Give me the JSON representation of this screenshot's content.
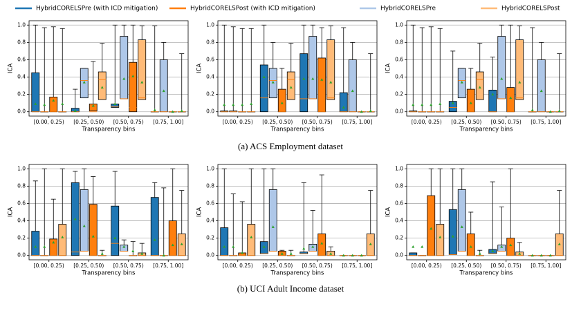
{
  "captions": [
    "(a) ACS Employment dataset",
    "(b) UCI Adult Income dataset"
  ],
  "chart_data": [
    {
      "type": "box",
      "ylabel": "ICA",
      "xlabel": "Transparency bins",
      "categories": [
        "[0.00, 0.25)",
        "[0.25, 0.50)",
        "[0.50, 0.75)",
        "[0.75, 1.00]"
      ],
      "ylim": [
        -0.05,
        1.05
      ],
      "yticks": [
        {
          "value": 0,
          "label": "0.0"
        },
        0.2,
        0.4,
        0.6,
        0.8,
        {
          "value": 1,
          "label": "1.0"
        }
      ],
      "grid": true,
      "series": [
        {
          "name": "HybridCORELSPre (with ICD mitigation)",
          "color": "#1f77b4",
          "q1": [
            0,
            0,
            0.05,
            0
          ],
          "q3": [
            0.45,
            0.04,
            0.09,
            0
          ],
          "median": [
            0,
            0,
            0.06,
            0
          ],
          "whishi": [
            1.0,
            0.26,
            1.0,
            0.99
          ],
          "mean": [
            0.09,
            0.01,
            0.09,
            0.02
          ]
        },
        {
          "name": "HybridCORELSPost (with ICD mitigation)",
          "color": "#ff7f0e",
          "q1": [
            0,
            0.01,
            0,
            0
          ],
          "q3": [
            0.17,
            0.09,
            0.57,
            0
          ],
          "median": [
            0,
            0,
            0.05,
            0
          ],
          "whishi": [
            0.98,
            0.58,
            1.0,
            0
          ],
          "mean": [
            0.13,
            0.07,
            0.41,
            0
          ]
        },
        {
          "name": "HybridCORELSPre",
          "color": "#aec7e8",
          "q1": [
            0,
            0.16,
            0.15,
            0
          ],
          "q3": [
            0,
            0.5,
            0.87,
            0.6
          ],
          "median": [
            0,
            0.36,
            0.15,
            0
          ],
          "whishi": [
            0.97,
            0.5,
            1.0,
            0.8
          ],
          "mean": [
            0.08,
            0.34,
            0.38,
            0.24
          ]
        },
        {
          "name": "HybridCORELSPost",
          "color": "#ffbb78",
          "q1": [
            0,
            0.14,
            0.14,
            0
          ],
          "q3": [
            0,
            0.46,
            0.83,
            0
          ],
          "median": [
            0,
            0.37,
            0.16,
            0
          ],
          "whishi": [
            0.96,
            0.79,
            0.99,
            0.67
          ],
          "mean": [
            0.09,
            0.28,
            0.34,
            0.01
          ]
        }
      ]
    },
    {
      "type": "box",
      "ylabel": "ICA",
      "xlabel": "Transparency bins",
      "categories": [
        "[0.00, 0.25)",
        "[0.25, 0.50)",
        "[0.50, 0.75)",
        "[0.75, 1.00]"
      ],
      "ylim": [
        -0.05,
        1.05
      ],
      "yticks": [
        {
          "value": 0,
          "label": "0.0"
        },
        0.2,
        0.4,
        0.6,
        0.8,
        {
          "value": 1,
          "label": "1.0"
        }
      ],
      "grid": true,
      "series": [
        {
          "name": "HybridCORELSPre (with ICD mitigation)",
          "color": "#1f77b4",
          "q1": [
            0,
            0,
            0,
            0
          ],
          "q3": [
            0.01,
            0.54,
            0.67,
            0.22
          ],
          "median": [
            0,
            0.16,
            0.15,
            0
          ],
          "whishi": [
            1.0,
            1.0,
            1.0,
            0.97
          ],
          "mean": [
            0.08,
            0.4,
            0.38,
            0.05
          ]
        },
        {
          "name": "HybridCORELSPost (with ICD mitigation)",
          "color": "#ff7f0e",
          "q1": [
            0,
            0,
            0,
            0
          ],
          "q3": [
            0,
            0.26,
            0.62,
            0
          ],
          "median": [
            0,
            0,
            0,
            0
          ],
          "whishi": [
            0.96,
            0.5,
            0.97,
            0
          ],
          "mean": [
            0.08,
            0.1,
            0.37,
            0
          ]
        },
        {
          "name": "HybridCORELSPre",
          "color": "#aec7e8",
          "q1": [
            0,
            0.16,
            0.15,
            0
          ],
          "q3": [
            0.01,
            0.5,
            0.87,
            0.6
          ],
          "median": [
            0,
            0.36,
            0.15,
            0
          ],
          "whishi": [
            0.98,
            0.8,
            1.0,
            0.8
          ],
          "mean": [
            0.08,
            0.34,
            0.38,
            0.24
          ]
        },
        {
          "name": "HybridCORELSPost",
          "color": "#ffbb78",
          "q1": [
            0,
            0.14,
            0.14,
            0
          ],
          "q3": [
            0,
            0.46,
            0.83,
            0
          ],
          "median": [
            0,
            0.37,
            0.16,
            0
          ],
          "whishi": [
            0.96,
            0.79,
            0.99,
            0.67
          ],
          "mean": [
            0.09,
            0.28,
            0.34,
            0.01
          ]
        }
      ]
    },
    {
      "type": "box",
      "ylabel": "ICA",
      "xlabel": "Transparency bins",
      "categories": [
        "[0.00, 0.25)",
        "[0.25, 0.50)",
        "[0.50, 0.75)",
        "[0.75, 1.00]"
      ],
      "ylim": [
        -0.05,
        1.05
      ],
      "yticks": [
        {
          "value": 0,
          "label": "0.0"
        },
        0.2,
        0.4,
        0.6,
        0.8,
        {
          "value": 1,
          "label": "1.0"
        }
      ],
      "grid": true,
      "series": [
        {
          "name": "HybridCORELSPre (with ICD mitigation)",
          "color": "#1f77b4",
          "q1": [
            0,
            0,
            0,
            0
          ],
          "q3": [
            0.01,
            0.12,
            0.25,
            0
          ],
          "median": [
            0,
            0.05,
            0,
            0
          ],
          "whishi": [
            1.0,
            0.7,
            0.63,
            0.97
          ],
          "mean": [
            0.08,
            0.1,
            0.2,
            0.02
          ]
        },
        {
          "name": "HybridCORELSPost (with ICD mitigation)",
          "color": "#ff7f0e",
          "q1": [
            0,
            0,
            0,
            0
          ],
          "q3": [
            0,
            0.26,
            0.28,
            0
          ],
          "median": [
            0,
            0,
            0,
            0
          ],
          "whishi": [
            0.98,
            0.5,
            1.0,
            0
          ],
          "mean": [
            0.08,
            0.1,
            0.16,
            0
          ]
        },
        {
          "name": "HybridCORELSPre",
          "color": "#aec7e8",
          "q1": [
            0,
            0.16,
            0.15,
            0
          ],
          "q3": [
            0,
            0.5,
            0.87,
            0.6
          ],
          "median": [
            0,
            0.36,
            0.15,
            0
          ],
          "whishi": [
            0.97,
            0.5,
            1.0,
            0.8
          ],
          "mean": [
            0.08,
            0.34,
            0.38,
            0.24
          ]
        },
        {
          "name": "HybridCORELSPost",
          "color": "#ffbb78",
          "q1": [
            0,
            0.14,
            0.14,
            0
          ],
          "q3": [
            0,
            0.46,
            0.83,
            0
          ],
          "median": [
            0,
            0.37,
            0.16,
            0
          ],
          "whishi": [
            0.96,
            0.79,
            0.99,
            0.67
          ],
          "mean": [
            0.09,
            0.28,
            0.34,
            0.01
          ]
        }
      ]
    },
    {
      "type": "box",
      "ylabel": "ICA",
      "xlabel": "Transparency bins",
      "categories": [
        "[0.00, 0.25)",
        "[0.25, 0.50)",
        "[0.50, 0.75)",
        "[0.75, 1.00]"
      ],
      "ylim": [
        -0.05,
        1.05
      ],
      "yticks": [
        {
          "value": 0,
          "label": "0.0"
        },
        0.2,
        0.4,
        0.6,
        0.8,
        {
          "value": 1,
          "label": "1.0"
        }
      ],
      "grid": true,
      "series": [
        {
          "name": "HybridCORELSPre (with ICD mitigation)",
          "color": "#1f77b4",
          "q1": [
            0,
            0,
            0,
            0
          ],
          "q3": [
            0.28,
            0.84,
            0.57,
            0.67
          ],
          "median": [
            0,
            0.04,
            0.14,
            0
          ],
          "whishi": [
            0.86,
            0.97,
            0.97,
            0.84
          ],
          "mean": [
            0.1,
            0.42,
            0.2,
            0.18
          ]
        },
        {
          "name": "HybridCORELSPost (with ICD mitigation)",
          "color": "#ff7f0e",
          "q1": [
            0,
            0,
            0,
            0
          ],
          "q3": [
            0.19,
            0.59,
            0,
            0.4
          ],
          "median": [
            0,
            0,
            0,
            0
          ],
          "whishi": [
            0.65,
            0.91,
            0.16,
            1.0
          ],
          "mean": [
            0.15,
            0.22,
            0.05,
            0.12
          ]
        },
        {
          "name": "HybridCORELSPre",
          "color": "#aec7e8",
          "q1": [
            0,
            0.05,
            0.05,
            0
          ],
          "q3": [
            0,
            0.76,
            0.12,
            0
          ],
          "median": [
            0,
            0.05,
            0.05,
            0
          ],
          "whishi": [
            1.0,
            1.0,
            0.18,
            0.78
          ],
          "mean": [
            0.1,
            0.34,
            0.1,
            0
          ]
        },
        {
          "name": "HybridCORELSPost",
          "color": "#ffbb78",
          "q1": [
            0,
            0,
            0,
            0
          ],
          "q3": [
            0.36,
            0,
            0.03,
            0.25
          ],
          "median": [
            0,
            0,
            0,
            0
          ],
          "whishi": [
            1.0,
            0.06,
            0.14,
            0.75
          ],
          "mean": [
            0.21,
            0.02,
            0.02,
            0.13
          ]
        }
      ]
    },
    {
      "type": "box",
      "ylabel": "ICA",
      "xlabel": "Transparency bins",
      "categories": [
        "[0.00, 0.25)",
        "[0.25, 0.50)",
        "[0.50, 0.75)",
        "[0.75, 1.00]"
      ],
      "ylim": [
        -0.05,
        1.05
      ],
      "yticks": [
        {
          "value": 0,
          "label": "0.0"
        },
        0.2,
        0.4,
        0.6,
        0.8,
        {
          "value": 1,
          "label": "1.0"
        }
      ],
      "grid": true,
      "series": [
        {
          "name": "HybridCORELSPre (with ICD mitigation)",
          "color": "#1f77b4",
          "q1": [
            0,
            0.02,
            0.02,
            0
          ],
          "q3": [
            0.32,
            0.16,
            0.04,
            0
          ],
          "median": [
            0,
            0.02,
            0.02,
            0
          ],
          "whishi": [
            1.0,
            1.0,
            0.84,
            0
          ],
          "mean": [
            0.1,
            0.1,
            0.08,
            0
          ]
        },
        {
          "name": "HybridCORELSPost (with ICD mitigation)",
          "color": "#ff7f0e",
          "q1": [
            0,
            0,
            0,
            0
          ],
          "q3": [
            0.03,
            0.05,
            0.25,
            0
          ],
          "median": [
            0,
            0,
            0,
            0
          ],
          "whishi": [
            0.62,
            0.06,
            0.93,
            0
          ],
          "mean": [
            0.03,
            0.02,
            0.14,
            0
          ]
        },
        {
          "name": "HybridCORELSPre",
          "color": "#aec7e8",
          "q1": [
            0,
            0.05,
            0.05,
            0
          ],
          "q3": [
            0,
            0.76,
            0.13,
            0
          ],
          "median": [
            0,
            0.05,
            0.05,
            0
          ],
          "whishi": [
            0.71,
            1.0,
            0.52,
            0
          ],
          "mean": [
            0.1,
            0.33,
            0.1,
            0
          ]
        },
        {
          "name": "HybridCORELSPost",
          "color": "#ffbb78",
          "q1": [
            0,
            0,
            0,
            0
          ],
          "q3": [
            0.36,
            0,
            0.05,
            0.25
          ],
          "median": [
            0,
            0,
            0,
            0
          ],
          "whishi": [
            1.0,
            0.06,
            0.1,
            0.75
          ],
          "mean": [
            0.21,
            0.02,
            0.02,
            0.13
          ]
        }
      ]
    },
    {
      "type": "box",
      "ylabel": "ICA",
      "xlabel": "Transparency bins",
      "categories": [
        "[0.00, 0.25)",
        "[0.25, 0.50)",
        "[0.50, 0.75)",
        "[0.75, 1.00]"
      ],
      "ylim": [
        -0.05,
        1.05
      ],
      "yticks": [
        {
          "value": 0,
          "label": "0.0"
        },
        0.2,
        0.4,
        0.6,
        0.8,
        {
          "value": 1,
          "label": "1.0"
        }
      ],
      "grid": true,
      "series": [
        {
          "name": "HybridCORELSPre (with ICD mitigation)",
          "color": "#1f77b4",
          "q1": [
            0,
            0.01,
            0.02,
            0
          ],
          "q3": [
            0.03,
            0.53,
            0.07,
            0
          ],
          "median": [
            0,
            0.01,
            0.02,
            0
          ],
          "whishi": [
            0.03,
            1.0,
            0.85,
            0
          ],
          "mean": [
            0.1,
            0.22,
            0.05,
            0
          ]
        },
        {
          "name": "HybridCORELSPost (with ICD mitigation)",
          "color": "#ff7f0e",
          "q1": [
            0,
            0,
            0,
            0
          ],
          "q3": [
            0.69,
            0.25,
            0.2,
            0
          ],
          "median": [
            0,
            0,
            0,
            0
          ],
          "whishi": [
            1.0,
            0.5,
            1.0,
            0
          ],
          "mean": [
            0.31,
            0.1,
            0.12,
            0
          ]
        },
        {
          "name": "HybridCORELSPre",
          "color": "#aec7e8",
          "q1": [
            0,
            0.05,
            0.05,
            0
          ],
          "q3": [
            0,
            0.76,
            0.12,
            0
          ],
          "median": [
            0,
            0.05,
            0.05,
            0
          ],
          "whishi": [
            0,
            1.0,
            0.56,
            0
          ],
          "mean": [
            0.1,
            0.33,
            0.1,
            0
          ]
        },
        {
          "name": "HybridCORELSPost",
          "color": "#ffbb78",
          "q1": [
            0,
            0,
            0,
            0
          ],
          "q3": [
            0.36,
            0,
            0.04,
            0.25
          ],
          "median": [
            0,
            0,
            0,
            0
          ],
          "whishi": [
            1.0,
            0.06,
            0.15,
            0.75
          ],
          "mean": [
            0.21,
            0.02,
            0.02,
            0.13
          ]
        }
      ]
    }
  ]
}
